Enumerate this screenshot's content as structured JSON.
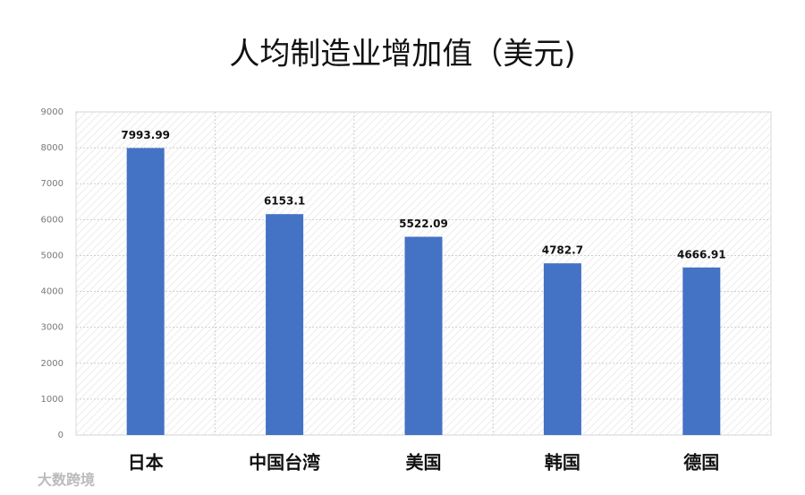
{
  "chart_data": {
    "type": "bar",
    "title": "人均制造业增加值（美元)",
    "categories": [
      "日本",
      "中国台湾",
      "美国",
      "韩国",
      "德国"
    ],
    "values": [
      7993.99,
      6153.1,
      5522.09,
      4782.7,
      4666.91
    ],
    "color": "#4472c4",
    "ylim": [
      0,
      9000
    ],
    "yticks": [
      0,
      1000,
      2000,
      3000,
      4000,
      5000,
      6000,
      7000,
      8000,
      9000
    ],
    "grid": true
  },
  "watermark": "大数跨境"
}
